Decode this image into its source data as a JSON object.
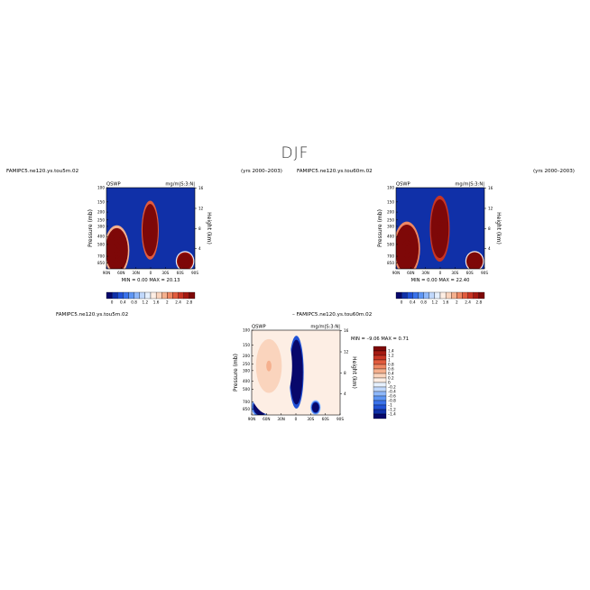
{
  "title": "DJF",
  "panels": [
    {
      "case_label": "FAMIPC5.ne120.ys.tou5m.02",
      "years": "(yrs 2000–2003)",
      "variable": "QSWP",
      "units": "mg/m|S:3:N|",
      "stats": "MIN =   0.00   MAX =   20.13"
    },
    {
      "case_label": "FAMIPC5.ne120.ys.tou60m.02",
      "years": "(yrs 2000–2003)",
      "variable": "QSWP",
      "units": "mg/m|S:3:N|",
      "stats": "MIN =   0.00   MAX =   22.40"
    },
    {
      "case_label": "FAMIPC5.ne120.ys.tou5m.02",
      "diff_label": "–  FAMIPC5.ne120.ys.tou60m.02",
      "variable": "QSWP",
      "units": "mg/m|S:3:N|",
      "stats": "MIN =   –9.06   MAX =   0.71"
    }
  ],
  "axes": {
    "pressure_label": "Pressure (mb)",
    "height_label": "Height (km)",
    "pressure_ticks": [
      "100",
      "150",
      "200",
      "250",
      "300",
      "400",
      "500",
      "700",
      "850"
    ],
    "height_ticks": [
      "4",
      "8",
      "12",
      "16"
    ],
    "lat_ticks": [
      "90N",
      "60N",
      "30N",
      "0",
      "30S",
      "60S",
      "90S"
    ]
  },
  "colorbars": {
    "abs": {
      "labels": [
        "0",
        "0.4",
        "0.8",
        "1.2",
        "1.6",
        "2",
        "2.4",
        "2.8"
      ],
      "colors": [
        "#08086b",
        "#1030a8",
        "#2152d6",
        "#3a72ea",
        "#5f96f4",
        "#8fb8fa",
        "#c0d8fc",
        "#e6f0fd",
        "#fdeee4",
        "#fad4bd",
        "#f5b08e",
        "#ee8762",
        "#e15c3e",
        "#c83524",
        "#a51a12",
        "#7e0808"
      ]
    },
    "diff": {
      "labels": [
        "1.4",
        "1.2",
        "1",
        "0.8",
        "0.6",
        "0.4",
        "0.2",
        "0",
        "–0.2",
        "–0.4",
        "–0.6",
        "–0.8",
        "–1",
        "–1.2",
        "–1.4"
      ],
      "colors": [
        "#7e0808",
        "#a51a12",
        "#c83524",
        "#e15c3e",
        "#ee8762",
        "#f5b08e",
        "#fad4bd",
        "#fdeee4",
        "#e6f0fd",
        "#c0d8fc",
        "#8fb8fa",
        "#5f96f4",
        "#3a72ea",
        "#2152d6",
        "#1030a8",
        "#08086b"
      ]
    }
  },
  "chart_data": [
    {
      "type": "heatmap",
      "title": "FAMIPC5.ne120.ys.tou5m.02",
      "xlabel": "",
      "ylabel": "Pressure (mb)",
      "y2label": "Height (km)",
      "x_ticks": [
        "90N",
        "60N",
        "30N",
        "0",
        "30S",
        "60S",
        "90S"
      ],
      "xlim": [
        90,
        -90
      ],
      "ylim_mb": [
        100,
        1000
      ],
      "min": 0.0,
      "max": 20.13,
      "features": [
        {
          "lat": -2,
          "p_mb": 380,
          "value": 20,
          "p_range_mb": [
            180,
            620
          ],
          "lat_range": [
            -12,
            14
          ]
        },
        {
          "lat": 70,
          "p_mb": 560,
          "value": 16,
          "p_range_mb": [
            350,
            1000
          ],
          "lat_range": [
            50,
            88
          ]
        },
        {
          "lat": -70,
          "p_mb": 780,
          "value": 12,
          "p_range_mb": [
            650,
            1000
          ],
          "lat_range": [
            -84,
            -56
          ]
        }
      ]
    },
    {
      "type": "heatmap",
      "title": "FAMIPC5.ne120.ys.tou60m.02",
      "xlabel": "",
      "ylabel": "Pressure (mb)",
      "y2label": "Height (km)",
      "x_ticks": [
        "90N",
        "60N",
        "30N",
        "0",
        "30S",
        "60S",
        "90S"
      ],
      "xlim": [
        90,
        -90
      ],
      "ylim_mb": [
        100,
        1000
      ],
      "min": 0.0,
      "max": 22.4,
      "features": [
        {
          "lat": -2,
          "p_mb": 370,
          "value": 22,
          "p_range_mb": [
            160,
            640
          ],
          "lat_range": [
            -14,
            16
          ]
        },
        {
          "lat": 70,
          "p_mb": 560,
          "value": 18,
          "p_range_mb": [
            320,
            1000
          ],
          "lat_range": [
            48,
            88
          ]
        },
        {
          "lat": -70,
          "p_mb": 780,
          "value": 13,
          "p_range_mb": [
            650,
            1000
          ],
          "lat_range": [
            -84,
            -56
          ]
        }
      ]
    },
    {
      "type": "heatmap",
      "title": "FAMIPC5.ne120.ys.tou5m.02 – FAMIPC5.ne120.ys.tou60m.02",
      "xlabel": "",
      "ylabel": "Pressure (mb)",
      "y2label": "Height (km)",
      "x_ticks": [
        "90N",
        "60N",
        "30N",
        "0",
        "30S",
        "60S",
        "90S"
      ],
      "xlim": [
        90,
        -90
      ],
      "ylim_mb": [
        100,
        1000
      ],
      "min": -9.06,
      "max": 0.71,
      "features": [
        {
          "lat": 0,
          "p_mb": 420,
          "value": -9,
          "p_range_mb": [
            150,
            650
          ],
          "lat_range": [
            -12,
            10
          ]
        },
        {
          "lat": 72,
          "p_mb": 820,
          "value": -4,
          "p_range_mb": [
            650,
            1000
          ],
          "lat_range": [
            58,
            86
          ]
        },
        {
          "lat": -40,
          "p_mb": 820,
          "value": -3,
          "p_range_mb": [
            700,
            950
          ],
          "lat_range": [
            -48,
            -32
          ]
        },
        {
          "lat": 55,
          "p_mb": 300,
          "value": 0.4,
          "p_range_mb": [
            100,
            700
          ],
          "lat_range": [
            20,
            90
          ]
        }
      ]
    }
  ]
}
